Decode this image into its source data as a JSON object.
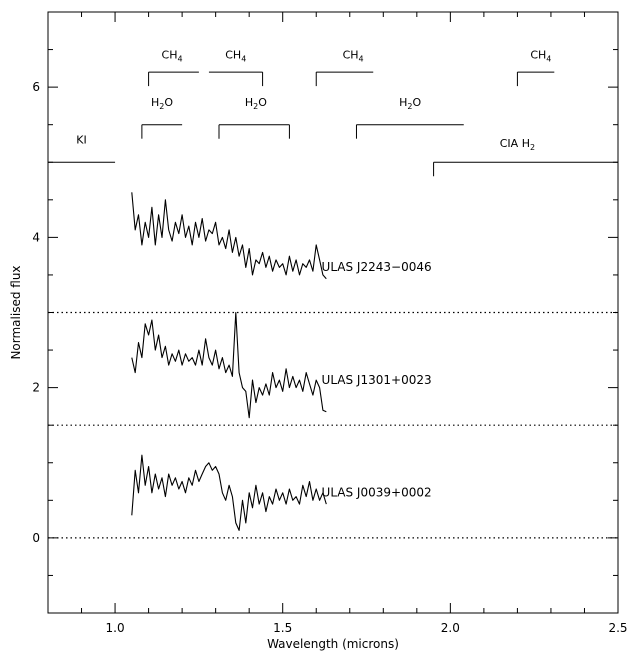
{
  "chart_data": {
    "type": "line",
    "title": "",
    "xlabel": "Wavelength (microns)",
    "ylabel": "Normalised flux",
    "xlim": [
      0.8,
      2.5
    ],
    "ylim": [
      -1.0,
      7.0
    ],
    "xticks": [
      {
        "value": 1.0,
        "label": "1.0"
      },
      {
        "value": 1.5,
        "label": "1.5"
      },
      {
        "value": 2.0,
        "label": "2.0"
      },
      {
        "value": 2.5,
        "label": "2.5"
      }
    ],
    "yticks": [
      {
        "value": 0,
        "label": "0"
      },
      {
        "value": 2,
        "label": "2"
      },
      {
        "value": 4,
        "label": "4"
      },
      {
        "value": 6,
        "label": "6"
      }
    ],
    "x_minor_step": 0.1,
    "y_minor_step": 0.5,
    "dotted_baselines": [
      0,
      1.5,
      3.0
    ],
    "series": [
      {
        "name": "ULAS J2243−0046",
        "label_at": [
          1.78,
          3.55
        ],
        "x": [
          1.05,
          1.06,
          1.07,
          1.08,
          1.09,
          1.1,
          1.11,
          1.12,
          1.13,
          1.14,
          1.15,
          1.16,
          1.17,
          1.18,
          1.19,
          1.2,
          1.21,
          1.22,
          1.23,
          1.24,
          1.25,
          1.26,
          1.27,
          1.28,
          1.29,
          1.3,
          1.31,
          1.32,
          1.33,
          1.34,
          1.35,
          1.36,
          1.37,
          1.38,
          1.39,
          1.4,
          1.41,
          1.42,
          1.43,
          1.44,
          1.45,
          1.46,
          1.47,
          1.48,
          1.49,
          1.5,
          1.51,
          1.52,
          1.53,
          1.54,
          1.55,
          1.56,
          1.57,
          1.58,
          1.59,
          1.6,
          1.61,
          1.62,
          1.63
        ],
        "y": [
          4.6,
          4.1,
          4.3,
          3.9,
          4.2,
          4.0,
          4.4,
          3.9,
          4.3,
          4.0,
          4.5,
          4.1,
          3.95,
          4.2,
          4.05,
          4.3,
          4.0,
          4.15,
          3.9,
          4.2,
          4.0,
          4.25,
          3.95,
          4.1,
          4.05,
          4.2,
          3.9,
          4.0,
          3.85,
          4.1,
          3.8,
          4.0,
          3.75,
          3.9,
          3.6,
          3.85,
          3.5,
          3.7,
          3.65,
          3.8,
          3.6,
          3.75,
          3.55,
          3.7,
          3.6,
          3.65,
          3.5,
          3.75,
          3.55,
          3.7,
          3.5,
          3.65,
          3.6,
          3.7,
          3.55,
          3.9,
          3.7,
          3.5,
          3.45
        ]
      },
      {
        "name": "ULAS J1301+0023",
        "label_at": [
          1.78,
          2.05
        ],
        "x": [
          1.05,
          1.06,
          1.07,
          1.08,
          1.09,
          1.1,
          1.11,
          1.12,
          1.13,
          1.14,
          1.15,
          1.16,
          1.17,
          1.18,
          1.19,
          1.2,
          1.21,
          1.22,
          1.23,
          1.24,
          1.25,
          1.26,
          1.27,
          1.28,
          1.29,
          1.3,
          1.31,
          1.32,
          1.33,
          1.34,
          1.35,
          1.36,
          1.37,
          1.38,
          1.39,
          1.4,
          1.41,
          1.42,
          1.43,
          1.44,
          1.45,
          1.46,
          1.47,
          1.48,
          1.49,
          1.5,
          1.51,
          1.52,
          1.53,
          1.54,
          1.55,
          1.56,
          1.57,
          1.58,
          1.59,
          1.6,
          1.61,
          1.62,
          1.63
        ],
        "y": [
          2.4,
          2.2,
          2.6,
          2.4,
          2.85,
          2.7,
          2.9,
          2.5,
          2.7,
          2.4,
          2.55,
          2.3,
          2.45,
          2.35,
          2.5,
          2.3,
          2.45,
          2.35,
          2.4,
          2.3,
          2.5,
          2.3,
          2.65,
          2.4,
          2.3,
          2.5,
          2.25,
          2.4,
          2.2,
          2.3,
          2.15,
          3.0,
          2.2,
          2.0,
          1.95,
          1.6,
          2.1,
          1.8,
          2.0,
          1.9,
          2.05,
          1.9,
          2.2,
          2.0,
          2.1,
          1.95,
          2.25,
          2.0,
          2.15,
          2.0,
          2.1,
          1.95,
          2.2,
          2.05,
          1.9,
          2.1,
          2.0,
          1.7,
          1.68
        ]
      },
      {
        "name": "ULAS J0039+0002",
        "label_at": [
          1.78,
          0.55
        ],
        "x": [
          1.05,
          1.06,
          1.07,
          1.08,
          1.09,
          1.1,
          1.11,
          1.12,
          1.13,
          1.14,
          1.15,
          1.16,
          1.17,
          1.18,
          1.19,
          1.2,
          1.21,
          1.22,
          1.23,
          1.24,
          1.25,
          1.26,
          1.27,
          1.28,
          1.29,
          1.3,
          1.31,
          1.32,
          1.33,
          1.34,
          1.35,
          1.36,
          1.37,
          1.38,
          1.39,
          1.4,
          1.41,
          1.42,
          1.43,
          1.44,
          1.45,
          1.46,
          1.47,
          1.48,
          1.49,
          1.5,
          1.51,
          1.52,
          1.53,
          1.54,
          1.55,
          1.56,
          1.57,
          1.58,
          1.59,
          1.6,
          1.61,
          1.62,
          1.63
        ],
        "y": [
          0.3,
          0.9,
          0.6,
          1.1,
          0.7,
          0.95,
          0.6,
          0.85,
          0.65,
          0.8,
          0.55,
          0.85,
          0.7,
          0.8,
          0.65,
          0.75,
          0.6,
          0.8,
          0.7,
          0.9,
          0.75,
          0.85,
          0.95,
          1.0,
          0.9,
          0.95,
          0.85,
          0.6,
          0.5,
          0.7,
          0.55,
          0.2,
          0.1,
          0.5,
          0.2,
          0.6,
          0.4,
          0.7,
          0.45,
          0.6,
          0.35,
          0.55,
          0.45,
          0.65,
          0.5,
          0.6,
          0.45,
          0.65,
          0.5,
          0.55,
          0.45,
          0.7,
          0.55,
          0.75,
          0.5,
          0.65,
          0.5,
          0.6,
          0.45
        ]
      }
    ],
    "annotations": [
      {
        "name": "KI",
        "label": "KI",
        "sub": "",
        "x1": 0.8,
        "x2": 1.0,
        "y": 5.0,
        "tick": "none",
        "label_x": 0.9,
        "label_y": 5.25
      },
      {
        "name": "h2o-1",
        "label": "H",
        "sub": "2",
        "tail": "O",
        "x1": 1.08,
        "x2": 1.2,
        "y": 5.5,
        "tick": "left",
        "label_x": 1.14,
        "label_y": 5.75
      },
      {
        "name": "h2o-2",
        "label": "H",
        "sub": "2",
        "tail": "O",
        "x1": 1.31,
        "x2": 1.52,
        "y": 5.5,
        "tick": "both",
        "label_x": 1.42,
        "label_y": 5.75
      },
      {
        "name": "h2o-3",
        "label": "H",
        "sub": "2",
        "tail": "O",
        "x1": 1.72,
        "x2": 2.04,
        "y": 5.5,
        "tick": "left",
        "label_x": 1.88,
        "label_y": 5.75
      },
      {
        "name": "ch4-1",
        "label": "CH",
        "sub": "4",
        "tail": "",
        "x1": 1.1,
        "x2": 1.25,
        "y": 6.2,
        "tick": "left",
        "label_x": 1.17,
        "label_y": 6.38
      },
      {
        "name": "ch4-2",
        "label": "CH",
        "sub": "4",
        "tail": "",
        "x1": 1.28,
        "x2": 1.44,
        "y": 6.2,
        "tick": "right",
        "label_x": 1.36,
        "label_y": 6.38
      },
      {
        "name": "ch4-3",
        "label": "CH",
        "sub": "4",
        "tail": "",
        "x1": 1.6,
        "x2": 1.77,
        "y": 6.2,
        "tick": "left",
        "label_x": 1.71,
        "label_y": 6.38
      },
      {
        "name": "ch4-4",
        "label": "CH",
        "sub": "4",
        "tail": "",
        "x1": 2.2,
        "x2": 2.31,
        "y": 6.2,
        "tick": "left",
        "label_x": 2.27,
        "label_y": 6.38
      },
      {
        "name": "cia-h2",
        "label": "CIA  H",
        "sub": "2",
        "tail": "",
        "x1": 1.95,
        "x2": 2.5,
        "y": 5.0,
        "tick": "left",
        "label_x": 2.2,
        "label_y": 5.2
      }
    ]
  }
}
